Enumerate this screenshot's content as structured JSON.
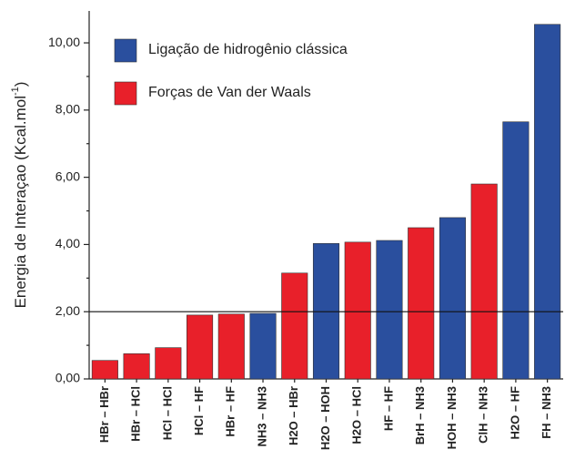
{
  "chart_data": {
    "type": "bar",
    "ylabel": [
      "Energia de Interaçao (Kcal.mol",
      "-1",
      ")"
    ],
    "categories": [
      "HBr – HBr",
      "HBr – HCl",
      "HCl – HCl",
      "HCl – HF",
      "HBr – HF",
      "NH3 – NH3",
      "H2O – HBr",
      "H2O – HOH",
      "H2O – HCl",
      "HF – HF",
      "BrH – NH3",
      "HOH – NH3",
      "ClH – NH3",
      "H2O – HF",
      "FH – NH3"
    ],
    "series": [
      {
        "name": "Ligação de hidrogênio clássica",
        "color": "#2a4f9e",
        "values": [
          null,
          null,
          null,
          null,
          null,
          1.95,
          null,
          4.03,
          null,
          4.12,
          null,
          4.8,
          null,
          7.65,
          10.55
        ]
      },
      {
        "name": "Forças de Van der Waals",
        "color": "#e8202a",
        "values": [
          0.55,
          0.75,
          0.93,
          1.9,
          1.93,
          null,
          3.15,
          null,
          4.07,
          null,
          4.5,
          null,
          5.8,
          null,
          null
        ]
      }
    ],
    "ylim": [
      0,
      10.95
    ],
    "yticks": [
      {
        "value": 0,
        "label": "0,00"
      },
      {
        "value": 2,
        "label": "2,00"
      },
      {
        "value": 4,
        "label": "4,00"
      },
      {
        "value": 6,
        "label": "6,00"
      },
      {
        "value": 8,
        "label": "8,00"
      },
      {
        "value": 10,
        "label": "10,00"
      }
    ],
    "reference_line": 2
  }
}
